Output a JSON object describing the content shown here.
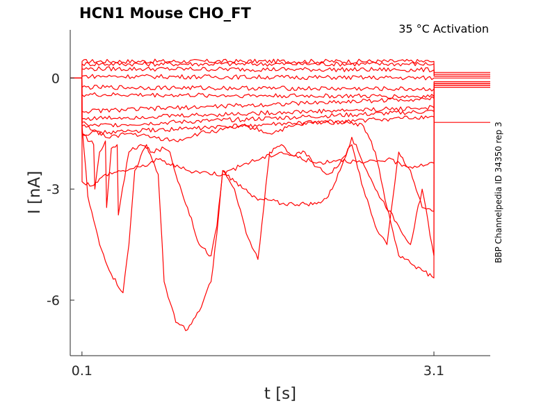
{
  "chart_data": {
    "type": "line",
    "title": "HCN1  Mouse  CHO_FT",
    "annotation": "35 °C  Activation",
    "side_label": "BBP Channelpedia ID 34350 rep 3",
    "xlabel": "t [s]",
    "ylabel": "I [nA]",
    "xlim": [
      0.0,
      3.58
    ],
    "ylim": [
      -7.5,
      1.3
    ],
    "x_ticks": [
      0.1,
      3.1
    ],
    "x_tick_labels": [
      "0.1",
      "3.1"
    ],
    "y_ticks": [
      -6,
      -3,
      0
    ],
    "y_tick_labels": [
      "-6",
      "-3",
      "0"
    ],
    "grid": false,
    "legend": "none",
    "line_color": "#ff0000",
    "series": [
      {
        "x": [
          0,
          0.1,
          0.101,
          3.1,
          3.101,
          3.58
        ],
        "y": [
          0,
          0,
          0.45,
          0.45,
          0.1,
          0.1
        ]
      },
      {
        "x": [
          0,
          0.1,
          0.101,
          3.1,
          3.101,
          3.58
        ],
        "y": [
          0,
          0,
          0.38,
          0.38,
          0.15,
          0.15
        ]
      },
      {
        "x": [
          0,
          0.1,
          0.101,
          3.1,
          3.101,
          3.58
        ],
        "y": [
          0,
          0,
          0.25,
          0.22,
          0.05,
          0.05
        ]
      },
      {
        "x": [
          0,
          0.1,
          0.101,
          3.1,
          3.101,
          3.58
        ],
        "y": [
          0,
          0,
          0.05,
          0.0,
          0.0,
          0.0
        ]
      },
      {
        "x": [
          0,
          0.1,
          0.101,
          3.1,
          3.101,
          3.58
        ],
        "y": [
          0,
          0,
          -0.25,
          -0.3,
          -0.1,
          -0.1
        ]
      },
      {
        "x": [
          0,
          0.1,
          0.101,
          3.1,
          3.101,
          3.58
        ],
        "y": [
          0,
          0,
          -0.45,
          -0.5,
          -0.2,
          -0.2
        ]
      },
      {
        "x": [
          0,
          0.1,
          0.101,
          3.1,
          3.101,
          3.58
        ],
        "y": [
          0,
          0,
          -0.9,
          -0.55,
          -0.15,
          -0.15
        ]
      },
      {
        "x": [
          0,
          0.1,
          0.101,
          3.1,
          3.101,
          3.58
        ],
        "y": [
          0,
          0,
          -1.1,
          -0.8,
          -0.2,
          -0.2
        ]
      },
      {
        "x": [
          0,
          0.1,
          0.101,
          3.1,
          3.101,
          3.58
        ],
        "y": [
          0,
          0,
          -1.3,
          -0.9,
          -0.25,
          -0.25
        ]
      },
      {
        "x": [
          0,
          0.1,
          0.101,
          3.1,
          3.101,
          3.58
        ],
        "y": [
          0,
          0,
          -1.5,
          -1.05,
          -1.2,
          -1.2
        ]
      },
      {
        "x": [
          0,
          0.1,
          0.101,
          0.2,
          0.3,
          0.45,
          0.6,
          0.75,
          1.0,
          1.3,
          1.5,
          1.8,
          2.1,
          2.3,
          2.5,
          2.7,
          2.9,
          3.1,
          3.101,
          3.58
        ],
        "y": [
          0,
          0,
          -2.8,
          -2.9,
          -2.6,
          -2.5,
          -2.4,
          -2.2,
          -2.5,
          -2.6,
          -2.3,
          -2.0,
          -2.3,
          -2.2,
          -2.3,
          -2.2,
          -2.4,
          -2.3,
          -0.2,
          -0.2
        ]
      },
      {
        "x": [
          0,
          0.1,
          0.101,
          0.15,
          0.25,
          0.35,
          0.45,
          0.5,
          0.55,
          0.65,
          0.75,
          0.8,
          0.9,
          1.0,
          1.1,
          1.2,
          1.25,
          1.3,
          1.4,
          1.5,
          1.6,
          1.7,
          1.8,
          1.9,
          2.0,
          2.1,
          2.2,
          2.3,
          2.4,
          2.6,
          2.8,
          2.9,
          3.0,
          3.1,
          3.101,
          3.58
        ],
        "y": [
          0,
          0,
          -1.3,
          -3.2,
          -4.5,
          -5.3,
          -5.8,
          -4.5,
          -2.5,
          -1.8,
          -2.6,
          -5.5,
          -6.6,
          -6.8,
          -6.3,
          -5.5,
          -4.2,
          -2.5,
          -2.8,
          -3.0,
          -3.3,
          -3.3,
          -3.4,
          -3.4,
          -3.4,
          -3.4,
          -3.2,
          -2.5,
          -1.6,
          -3.0,
          -4.0,
          -4.5,
          -3.0,
          -4.8,
          -0.15,
          -0.15
        ]
      },
      {
        "x": [
          0,
          0.1,
          0.101,
          0.2,
          0.21,
          0.25,
          0.3,
          0.31,
          0.35,
          0.4,
          0.41,
          0.5,
          0.6,
          0.7,
          0.8,
          0.85,
          0.9,
          1.0,
          1.1,
          1.2,
          1.25,
          1.3,
          1.4,
          1.5,
          1.6,
          1.7,
          1.8,
          1.9,
          2.0,
          2.1,
          2.2,
          2.3,
          2.4,
          2.5,
          2.6,
          2.7,
          2.8,
          2.9,
          3.0,
          3.1,
          3.101,
          3.58
        ],
        "y": [
          0,
          0,
          -1.5,
          -1.8,
          -3.0,
          -2.0,
          -1.7,
          -3.5,
          -1.9,
          -1.8,
          -3.7,
          -2.0,
          -1.8,
          -2.0,
          -1.9,
          -2.0,
          -2.6,
          -3.5,
          -4.5,
          -4.8,
          -4.0,
          -2.5,
          -3.0,
          -4.2,
          -4.9,
          -2.0,
          -1.8,
          -2.1,
          -2.0,
          -2.4,
          -2.6,
          -2.3,
          -1.8,
          -3.0,
          -4.0,
          -4.5,
          -2.0,
          -2.5,
          -3.5,
          -3.6,
          -0.15,
          -0.15
        ]
      },
      {
        "x": [
          0,
          0.1,
          0.101,
          0.3,
          0.5,
          0.7,
          0.9,
          1.1,
          1.3,
          1.5,
          1.7,
          1.9,
          2.1,
          2.3,
          2.4,
          2.5,
          2.6,
          2.7,
          2.8,
          2.9,
          3.0,
          3.1,
          3.101,
          3.58
        ],
        "y": [
          0,
          0,
          -1.2,
          -1.6,
          -1.5,
          -1.6,
          -1.7,
          -1.5,
          -1.4,
          -1.3,
          -1.5,
          -1.3,
          -1.2,
          -1.2,
          -1.2,
          -1.3,
          -2.0,
          -3.5,
          -4.8,
          -5.0,
          -5.2,
          -5.4,
          -0.2,
          -0.2
        ]
      }
    ]
  }
}
